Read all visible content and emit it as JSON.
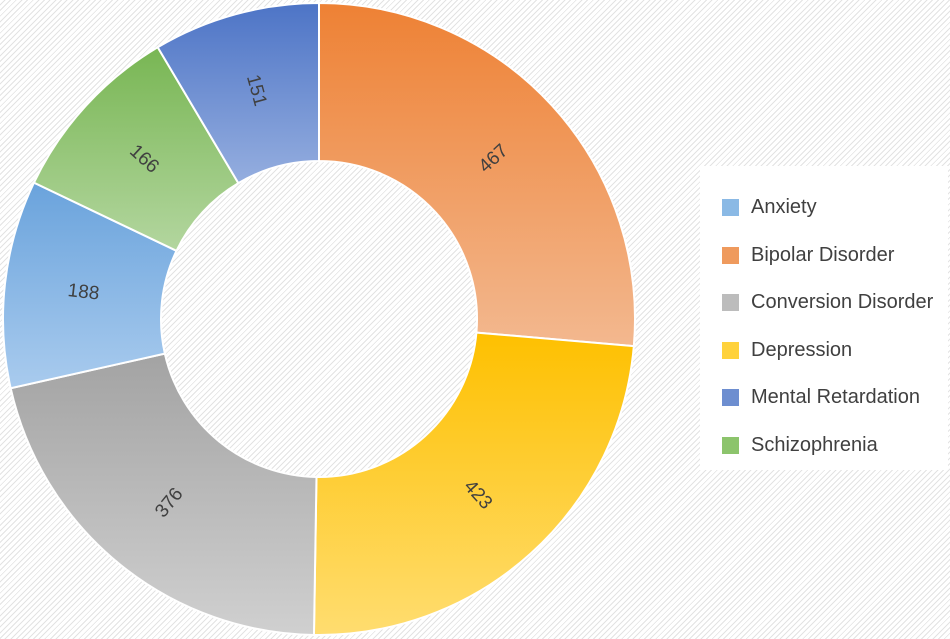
{
  "chart_data": {
    "type": "doughnut",
    "categories": [
      "Bipolar Disorder",
      "Depression",
      "Conversion Disorder",
      "Anxiety",
      "Schizophrenia",
      "Mental Retardation"
    ],
    "values": [
      467,
      423,
      376,
      188,
      166,
      151
    ],
    "labels": [
      "467",
      "423",
      "376",
      "188",
      "166",
      "151"
    ],
    "colors": [
      [
        "#ee8134",
        "#f3b88f"
      ],
      [
        "#fec000",
        "#ffdd70"
      ],
      [
        "#a3a3a3",
        "#d0d0d0"
      ],
      [
        "#6aa3dc",
        "#a9cbee"
      ],
      [
        "#78b653",
        "#b3d69f"
      ],
      [
        "#4d74c6",
        "#95aedf"
      ]
    ],
    "legend": {
      "position": "right",
      "entries": [
        {
          "label": "Anxiety",
          "color": "#8ab9e5"
        },
        {
          "label": "Bipolar Disorder",
          "color": "#ef9a5d"
        },
        {
          "label": "Conversion Disorder",
          "color": "#bcbcbc"
        },
        {
          "label": "Depression",
          "color": "#ffd23c"
        },
        {
          "label": "Mental Retardation",
          "color": "#6d8ed0"
        },
        {
          "label": "Schizophrenia",
          "color": "#8cc46c"
        }
      ]
    }
  }
}
